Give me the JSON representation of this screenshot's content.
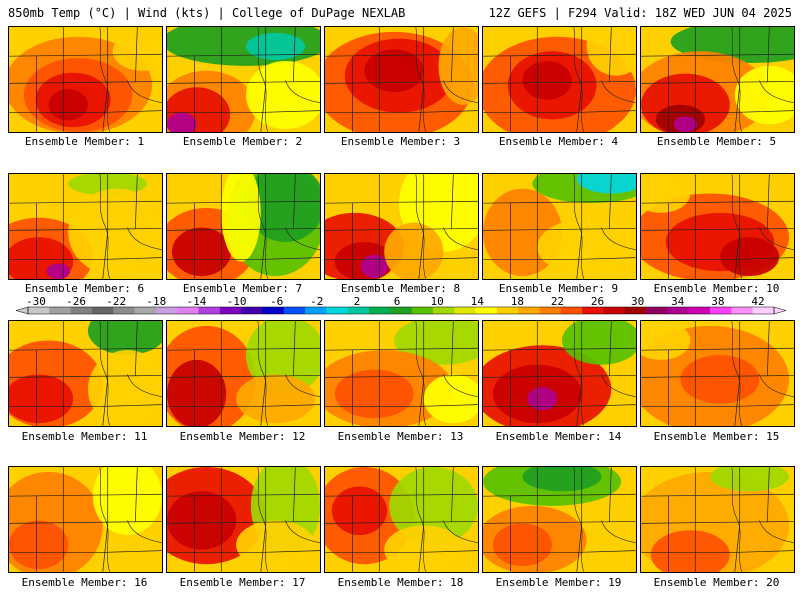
{
  "header": {
    "title": "850mb Temp (°C) | Wind (kts) | College of DuPage NEXLAB",
    "run_info": "12Z GEFS | F294 Valid: 18Z WED JUN 04 2025"
  },
  "colorbar": {
    "labels": [
      "-30",
      "-26",
      "-22",
      "-18",
      "-14",
      "-10",
      "-6",
      "-2",
      "2",
      "6",
      "10",
      "14",
      "18",
      "22",
      "26",
      "30",
      "34",
      "38",
      "42"
    ],
    "colors": [
      "#c8c8c8",
      "#a0a0a0",
      "#808080",
      "#646464",
      "#8c8c8c",
      "#a8a8a8",
      "#c8a0e0",
      "#e080f0",
      "#b040e0",
      "#8000c0",
      "#4000b0",
      "#0000c8",
      "#0050ff",
      "#00a0ff",
      "#00d8e0",
      "#00c8a0",
      "#00b050",
      "#20a020",
      "#58c000",
      "#a0d800",
      "#e0e800",
      "#ffff00",
      "#ffd000",
      "#ffa800",
      "#ff8000",
      "#ff5000",
      "#e81000",
      "#c80000",
      "#a00000",
      "#900060",
      "#b00090",
      "#d000b0",
      "#ff40ff",
      "#ff90ff",
      "#ffd0ff"
    ]
  },
  "panels": [
    {
      "label": "Ensemble Member: 1"
    },
    {
      "label": "Ensemble Member: 2"
    },
    {
      "label": "Ensemble Member: 3"
    },
    {
      "label": "Ensemble Member: 4"
    },
    {
      "label": "Ensemble Member: 5"
    },
    {
      "label": "Ensemble Member: 6"
    },
    {
      "label": "Ensemble Member: 7"
    },
    {
      "label": "Ensemble Member: 8"
    },
    {
      "label": "Ensemble Member: 9"
    },
    {
      "label": "Ensemble Member: 10"
    },
    {
      "label": "Ensemble Member: 11"
    },
    {
      "label": "Ensemble Member: 12"
    },
    {
      "label": "Ensemble Member: 13"
    },
    {
      "label": "Ensemble Member: 14"
    },
    {
      "label": "Ensemble Member: 15"
    },
    {
      "label": "Ensemble Member: 16"
    },
    {
      "label": "Ensemble Member: 17"
    },
    {
      "label": "Ensemble Member: 18"
    },
    {
      "label": "Ensemble Member: 19"
    },
    {
      "label": "Ensemble Member: 20"
    }
  ]
}
